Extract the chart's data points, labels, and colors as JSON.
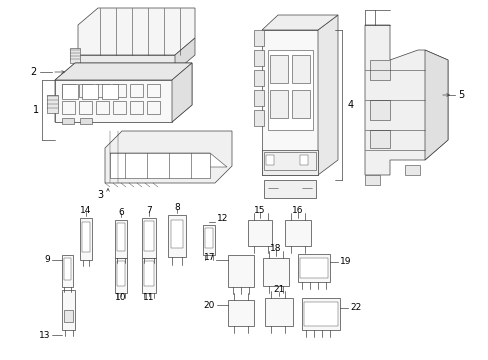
{
  "bg_color": "#ffffff",
  "line_color": "#404040",
  "lw": 0.5,
  "label_fontsize": 6.5,
  "fig_w": 4.89,
  "fig_h": 3.6,
  "dpi": 100
}
